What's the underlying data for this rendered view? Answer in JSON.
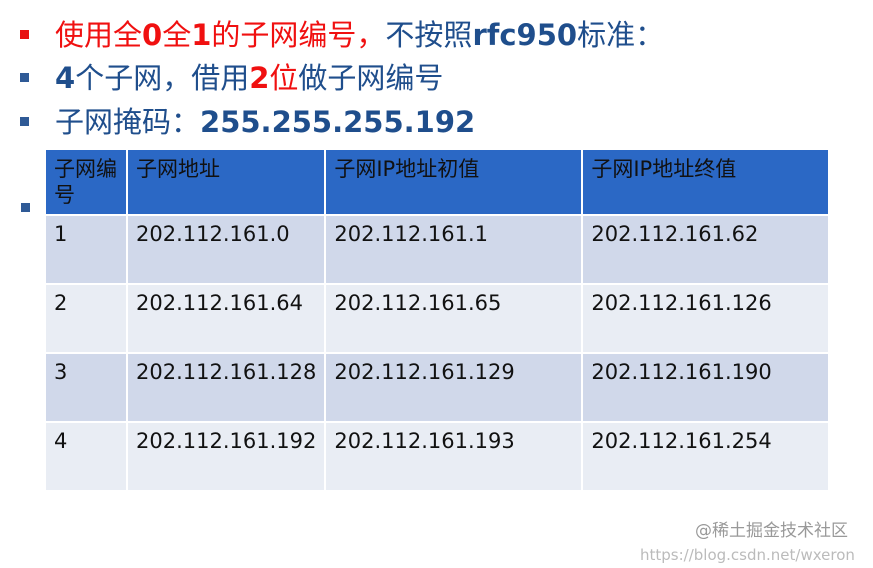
{
  "bullets": {
    "l1": {
      "a": "使用全",
      "b": "0",
      "c": "全",
      "d": "1",
      "e": "的子网编号，",
      "f": "不按照",
      "g": "rfc950",
      "h": "标准："
    },
    "l2": {
      "a": "4",
      "b": "个子网，借用",
      "c": "2",
      "d": "位",
      "e": "做子网编号"
    },
    "l3": {
      "a": "子网掩码：",
      "b": "255.255.255.192"
    }
  },
  "table": {
    "headers": [
      "子网编号",
      "子网地址",
      "子网IP地址初值",
      "子网IP地址终值"
    ],
    "rows": [
      [
        "1",
        "202.112.161.0",
        "202.112.161.1",
        "202.112.161.62"
      ],
      [
        "2",
        "202.112.161.64",
        "202.112.161.65",
        "202.112.161.126"
      ],
      [
        "3",
        "202.112.161.128",
        "202.112.161.129",
        "202.112.161.190"
      ],
      [
        "4",
        "202.112.161.192",
        "202.112.161.193",
        "202.112.161.254"
      ]
    ]
  },
  "watermark": {
    "main": "@稀土掘金技术社区",
    "url": "https://blog.csdn.net/wxeron"
  },
  "colors": {
    "red": "#f01010",
    "blue": "#1f4e8c",
    "header": "#2b68c5"
  }
}
